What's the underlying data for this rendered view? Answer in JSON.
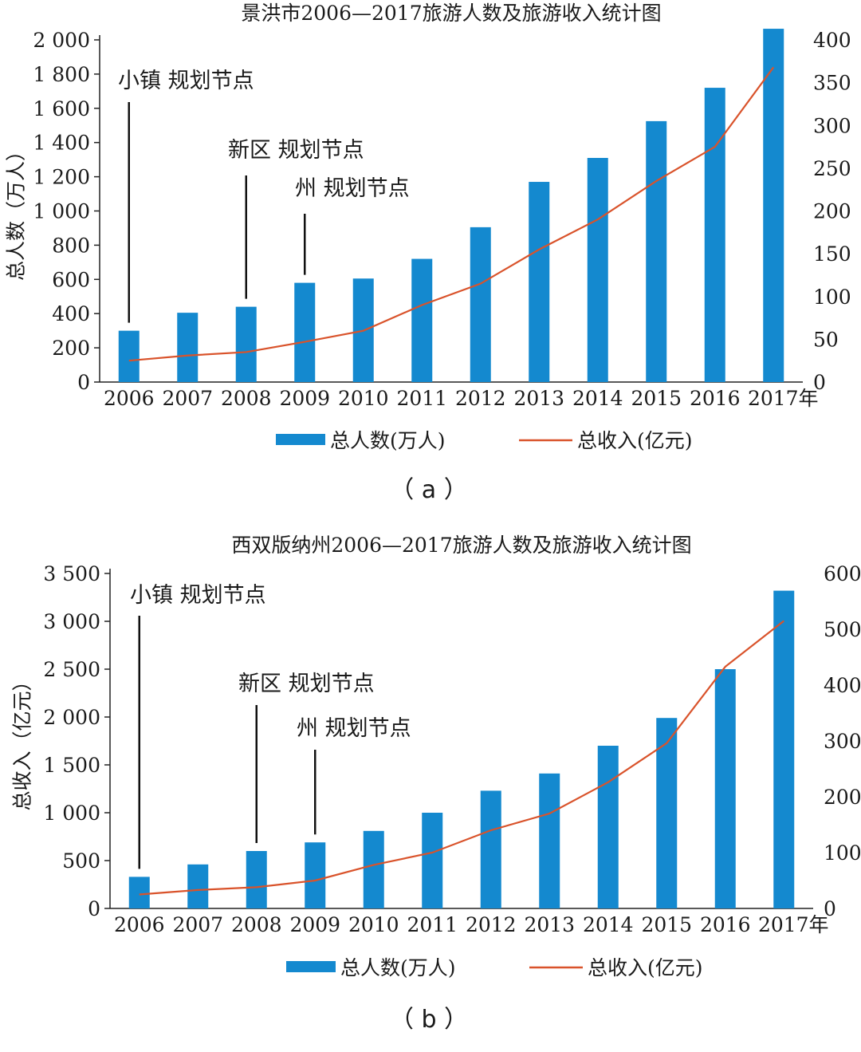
{
  "chart_data": [
    {
      "type": "bar",
      "panel": "a",
      "panel_label": "（  a  ）",
      "title": "景洪市2006—2017旅游人数及旅游收入统计图",
      "ylabel_left": "总人数（万人）",
      "ylabel_right": "",
      "x_unit_suffix": "年",
      "categories": [
        "2006",
        "2007",
        "2008",
        "2009",
        "2010",
        "2011",
        "2012",
        "2013",
        "2014",
        "2015",
        "2016",
        "2017"
      ],
      "y_left": {
        "min": 0,
        "max": 2000,
        "ticks": [
          0,
          200,
          400,
          600,
          800,
          1000,
          1200,
          1400,
          1600,
          1800,
          2000
        ],
        "tick_labels": [
          "0",
          "200",
          "400",
          "600",
          "800",
          "1 000",
          "1 200",
          "1 400",
          "1 600",
          "1 800",
          "2 000"
        ]
      },
      "y_right": {
        "min": 0,
        "max": 400,
        "ticks": [
          0,
          50,
          100,
          150,
          200,
          250,
          300,
          350,
          400
        ],
        "tick_labels": [
          "0",
          "50",
          "100",
          "150",
          "200",
          "250",
          "300",
          "350",
          "400"
        ]
      },
      "series": [
        {
          "name": "总人数(万人)",
          "kind": "bar",
          "axis": "left",
          "color": "#1489cf",
          "values": [
            300,
            405,
            440,
            580,
            605,
            720,
            905,
            1170,
            1310,
            1525,
            1720,
            2065
          ]
        },
        {
          "name": "总收入(亿元)",
          "kind": "line",
          "axis": "right",
          "color": "#d9532b",
          "values": [
            25,
            31,
            35,
            47,
            60,
            90,
            115,
            155,
            190,
            235,
            275,
            368
          ]
        }
      ],
      "annotations": [
        {
          "text": "小镇 规划节点",
          "category": "2006"
        },
        {
          "text": "新区 规划节点",
          "category": "2008"
        },
        {
          "text": "州 规划节点",
          "category": "2009"
        }
      ],
      "legend": {
        "position": "bottom"
      }
    },
    {
      "type": "bar",
      "panel": "b",
      "panel_label": "（  b  ）",
      "title": "西双版纳州2006—2017旅游人数及旅游收入统计图",
      "ylabel_left": "总收入（亿元）",
      "ylabel_right": "",
      "x_unit_suffix": "年",
      "categories": [
        "2006",
        "2007",
        "2008",
        "2009",
        "2010",
        "2011",
        "2012",
        "2013",
        "2014",
        "2015",
        "2016",
        "2017"
      ],
      "y_left": {
        "min": 0,
        "max": 3500,
        "ticks": [
          0,
          500,
          1000,
          1500,
          2000,
          2500,
          3000,
          3500
        ],
        "tick_labels": [
          "0",
          "500",
          "1 000",
          "1 500",
          "2 000",
          "2 500",
          "3 000",
          "3 500"
        ]
      },
      "y_right": {
        "min": 0,
        "max": 600,
        "ticks": [
          0,
          100,
          200,
          300,
          400,
          500,
          600
        ],
        "tick_labels": [
          "0",
          "100",
          "200",
          "300",
          "400",
          "500",
          "600"
        ]
      },
      "series": [
        {
          "name": "总人数(万人)",
          "kind": "bar",
          "axis": "left",
          "color": "#1489cf",
          "values": [
            330,
            460,
            600,
            690,
            810,
            1000,
            1230,
            1410,
            1700,
            1990,
            2500,
            3320
          ]
        },
        {
          "name": "总收入(亿元)",
          "kind": "line",
          "axis": "right",
          "color": "#d9532b",
          "values": [
            25,
            33,
            38,
            50,
            78,
            100,
            140,
            170,
            226,
            296,
            433,
            515
          ]
        }
      ],
      "annotations": [
        {
          "text": "小镇 规划节点",
          "category": "2006"
        },
        {
          "text": "新区 规划节点",
          "category": "2008"
        },
        {
          "text": "州 规划节点",
          "category": "2009"
        }
      ],
      "legend": {
        "position": "bottom"
      }
    }
  ]
}
